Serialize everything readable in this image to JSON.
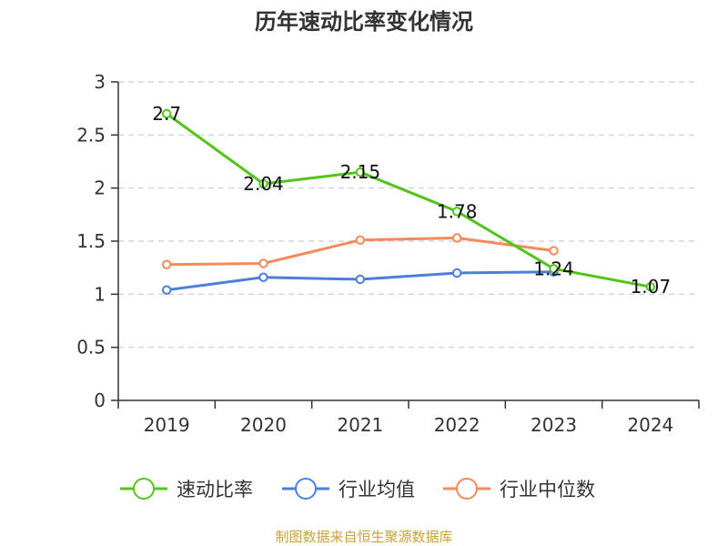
{
  "source": "制图数据来自恒生聚源数据库",
  "colors": {
    "background": "#ffffff",
    "axis": "#333333",
    "grid": "#cccccc"
  },
  "chart_data": {
    "type": "line",
    "title": "历年速动比率变化情况",
    "xlabel": "",
    "ylabel": "",
    "categories": [
      "2019",
      "2020",
      "2021",
      "2022",
      "2023",
      "2024"
    ],
    "yticks": [
      "0",
      "0.5",
      "1",
      "1.5",
      "2",
      "2.5",
      "3"
    ],
    "ylim": [
      0,
      3
    ],
    "grid": true,
    "legend_position": "bottom",
    "series": [
      {
        "name": "速动比率",
        "color": "#52c41a",
        "values": [
          2.7,
          2.04,
          2.15,
          1.78,
          1.24,
          1.07
        ],
        "labels": [
          "2.7",
          "2.04",
          "2.15",
          "1.78",
          "1.24",
          "1.07"
        ],
        "show_labels": true
      },
      {
        "name": "行业均值",
        "color": "#4a7fdb",
        "values": [
          1.04,
          1.16,
          1.14,
          1.2,
          1.21,
          null
        ],
        "show_labels": false
      },
      {
        "name": "行业中位数",
        "color": "#f4895a",
        "values": [
          1.28,
          1.29,
          1.51,
          1.53,
          1.41,
          null
        ],
        "show_labels": false
      }
    ]
  }
}
